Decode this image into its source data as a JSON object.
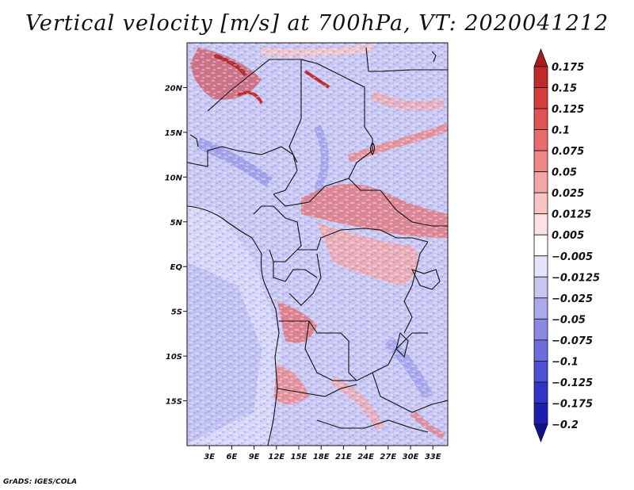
{
  "title": "Vertical velocity [m/s] at 700hPa, VT: 2020041212",
  "credit": "GrADS: IGES/COLA",
  "map": {
    "lon_range": [
      0,
      35
    ],
    "lat_range": [
      -20,
      25
    ],
    "x_ticks": [
      "3E",
      "6E",
      "9E",
      "12E",
      "15E",
      "18E",
      "21E",
      "24E",
      "27E",
      "30E",
      "33E"
    ],
    "y_ticks": [
      "20N",
      "15N",
      "10N",
      "5N",
      "EQ",
      "5S",
      "10S",
      "15S"
    ]
  },
  "colorbar": {
    "levels": [
      "0.175",
      "0.15",
      "0.125",
      "0.1",
      "0.075",
      "0.05",
      "0.025",
      "0.0125",
      "0.005",
      "−0.005",
      "−0.0125",
      "−0.025",
      "−0.05",
      "−0.075",
      "−0.1",
      "−0.125",
      "−0.175",
      "−0.2"
    ],
    "colors": [
      "#a81c1c",
      "#c22a2a",
      "#d63c3c",
      "#e15353",
      "#e86c6c",
      "#ee8888",
      "#f4a6a6",
      "#f8c4c4",
      "#fce2e2",
      "#ffffff",
      "#e4e4fa",
      "#c6c6f2",
      "#a9a9ec",
      "#8a8ae4",
      "#6d6dde",
      "#4f4fd6",
      "#3333c8",
      "#1d1db0",
      "#12128f"
    ]
  }
}
